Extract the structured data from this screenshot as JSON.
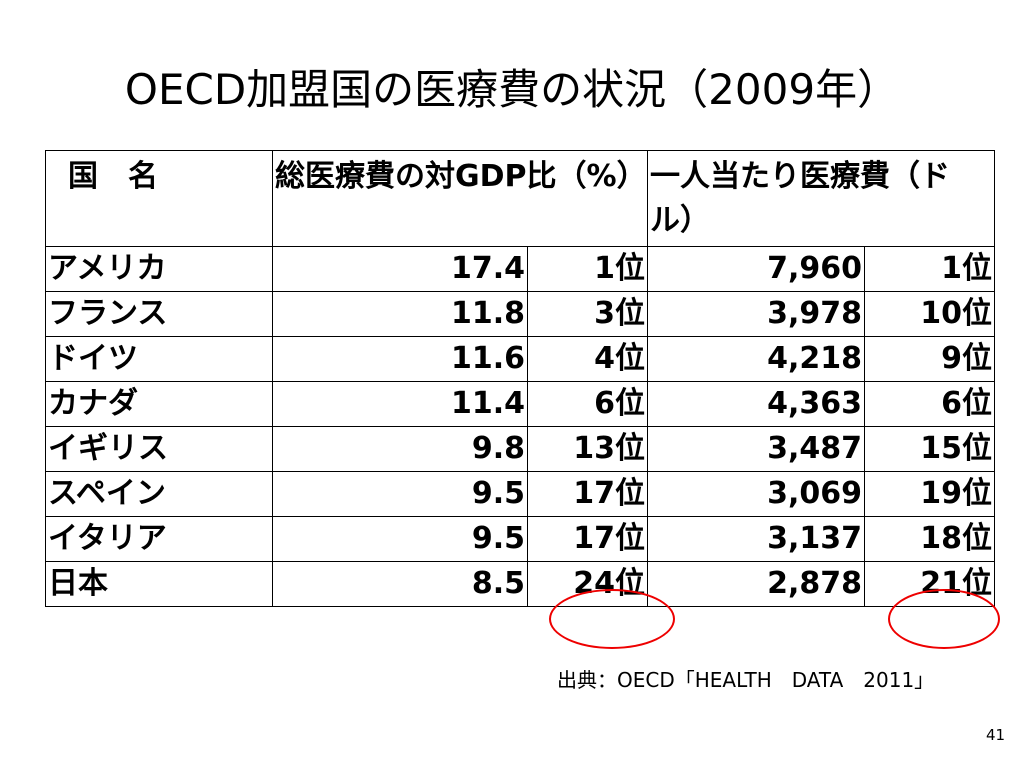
{
  "title": "OECD加盟国の医療費の状況（2009年）",
  "header": {
    "country": "国　名",
    "gdp_ratio": "総医療費の対GDP比（%）",
    "per_capita": "一人当たり医療費（ドル）"
  },
  "rows": [
    {
      "country": "アメリカ",
      "gdp": "17.4",
      "gdp_rank": "1位",
      "cost": "7,960",
      "cost_rank": "1位"
    },
    {
      "country": "フランス",
      "gdp": "11.8",
      "gdp_rank": "3位",
      "cost": "3,978",
      "cost_rank": "10位"
    },
    {
      "country": "ドイツ",
      "gdp": "11.6",
      "gdp_rank": "4位",
      "cost": "4,218",
      "cost_rank": "9位"
    },
    {
      "country": "カナダ",
      "gdp": "11.4",
      "gdp_rank": "6位",
      "cost": "4,363",
      "cost_rank": "6位"
    },
    {
      "country": "イギリス",
      "gdp": "9.8",
      "gdp_rank": "13位",
      "cost": "3,487",
      "cost_rank": "15位"
    },
    {
      "country": "スペイン",
      "gdp": "9.5",
      "gdp_rank": "17位",
      "cost": "3,069",
      "cost_rank": "19位"
    },
    {
      "country": "イタリア",
      "gdp": "9.5",
      "gdp_rank": "17位",
      "cost": "3,137",
      "cost_rank": "18位"
    },
    {
      "country": "日本",
      "gdp": "8.5",
      "gdp_rank": "24位",
      "cost": "2,878",
      "cost_rank": "21位"
    }
  ],
  "source": "出典：OECD「HEALTH　DATA　2011」",
  "page_number": "41",
  "highlight_color": "#ee0000"
}
